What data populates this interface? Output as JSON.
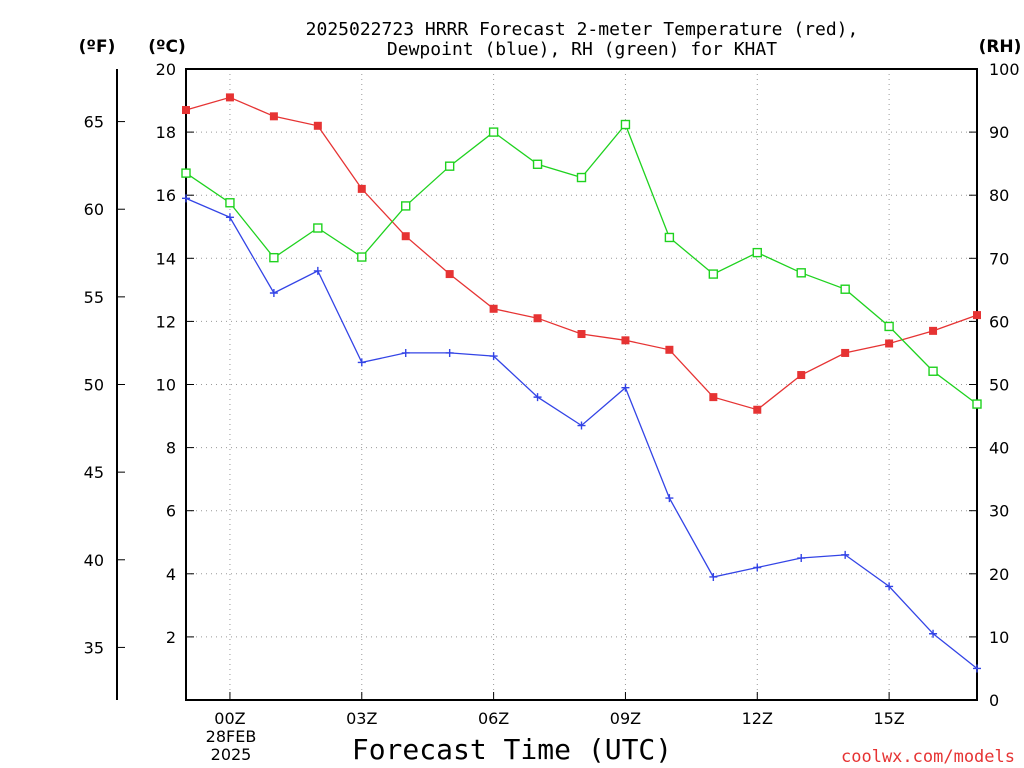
{
  "chart_data": {
    "type": "line",
    "title": [
      "2025022723 HRRR Forecast 2-meter Temperature (red),",
      "Dewpoint (blue), RH (green) for KHAT"
    ],
    "xlabel": "Forecast Time (UTC)",
    "date_label": [
      "28FEB",
      "2025"
    ],
    "watermark": "coolwx.com/models",
    "axis_units": {
      "fahrenheit": "(ºF)",
      "celsius": "(ºC)",
      "rh": "(RH)"
    },
    "x_hours": [
      -1,
      0,
      1,
      2,
      3,
      4,
      5,
      6,
      7,
      8,
      9,
      10,
      11,
      12,
      13,
      14,
      15,
      16,
      17
    ],
    "x_ticks": [
      {
        "hour": 0,
        "label": "00Z"
      },
      {
        "hour": 3,
        "label": "03Z"
      },
      {
        "hour": 6,
        "label": "06Z"
      },
      {
        "hour": 9,
        "label": "09Z"
      },
      {
        "hour": 12,
        "label": "12Z"
      },
      {
        "hour": 15,
        "label": "15Z"
      }
    ],
    "xlim": [
      -1,
      17
    ],
    "celsius_axis": {
      "ylim": [
        0,
        20
      ],
      "ticks": [
        2,
        4,
        6,
        8,
        10,
        12,
        14,
        16,
        18,
        20
      ]
    },
    "fahrenheit_axis": {
      "ticks": [
        35,
        40,
        45,
        50,
        55,
        60,
        65
      ]
    },
    "rh_axis": {
      "ylim": [
        0,
        100
      ],
      "ticks": [
        0,
        10,
        20,
        30,
        40,
        50,
        60,
        70,
        80,
        90,
        100
      ]
    },
    "grid": true,
    "series": [
      {
        "name": "Temperature (red)",
        "axis": "celsius",
        "color": "#e63333",
        "marker": "filled-square",
        "values": [
          18.7,
          19.1,
          18.5,
          18.2,
          16.2,
          14.7,
          13.5,
          12.4,
          12.1,
          11.6,
          11.4,
          11.1,
          9.6,
          9.2,
          10.3,
          11.0,
          11.3,
          11.7,
          12.2
        ]
      },
      {
        "name": "Dewpoint (blue)",
        "axis": "celsius",
        "color": "#3344e6",
        "marker": "plus",
        "values": [
          15.9,
          15.3,
          12.9,
          13.6,
          10.7,
          11.0,
          11.0,
          10.9,
          9.6,
          8.7,
          9.9,
          6.4,
          3.9,
          4.2,
          4.5,
          4.6,
          3.6,
          2.1,
          1.0
        ]
      },
      {
        "name": "RH (green)",
        "axis": "rh",
        "color": "#1fd21f",
        "marker": "open-square",
        "values": [
          83.5,
          78.8,
          70.1,
          74.8,
          70.2,
          78.3,
          84.6,
          90.0,
          84.9,
          82.8,
          91.2,
          73.3,
          67.5,
          70.9,
          67.7,
          65.1,
          59.2,
          52.1,
          46.9
        ]
      }
    ]
  }
}
